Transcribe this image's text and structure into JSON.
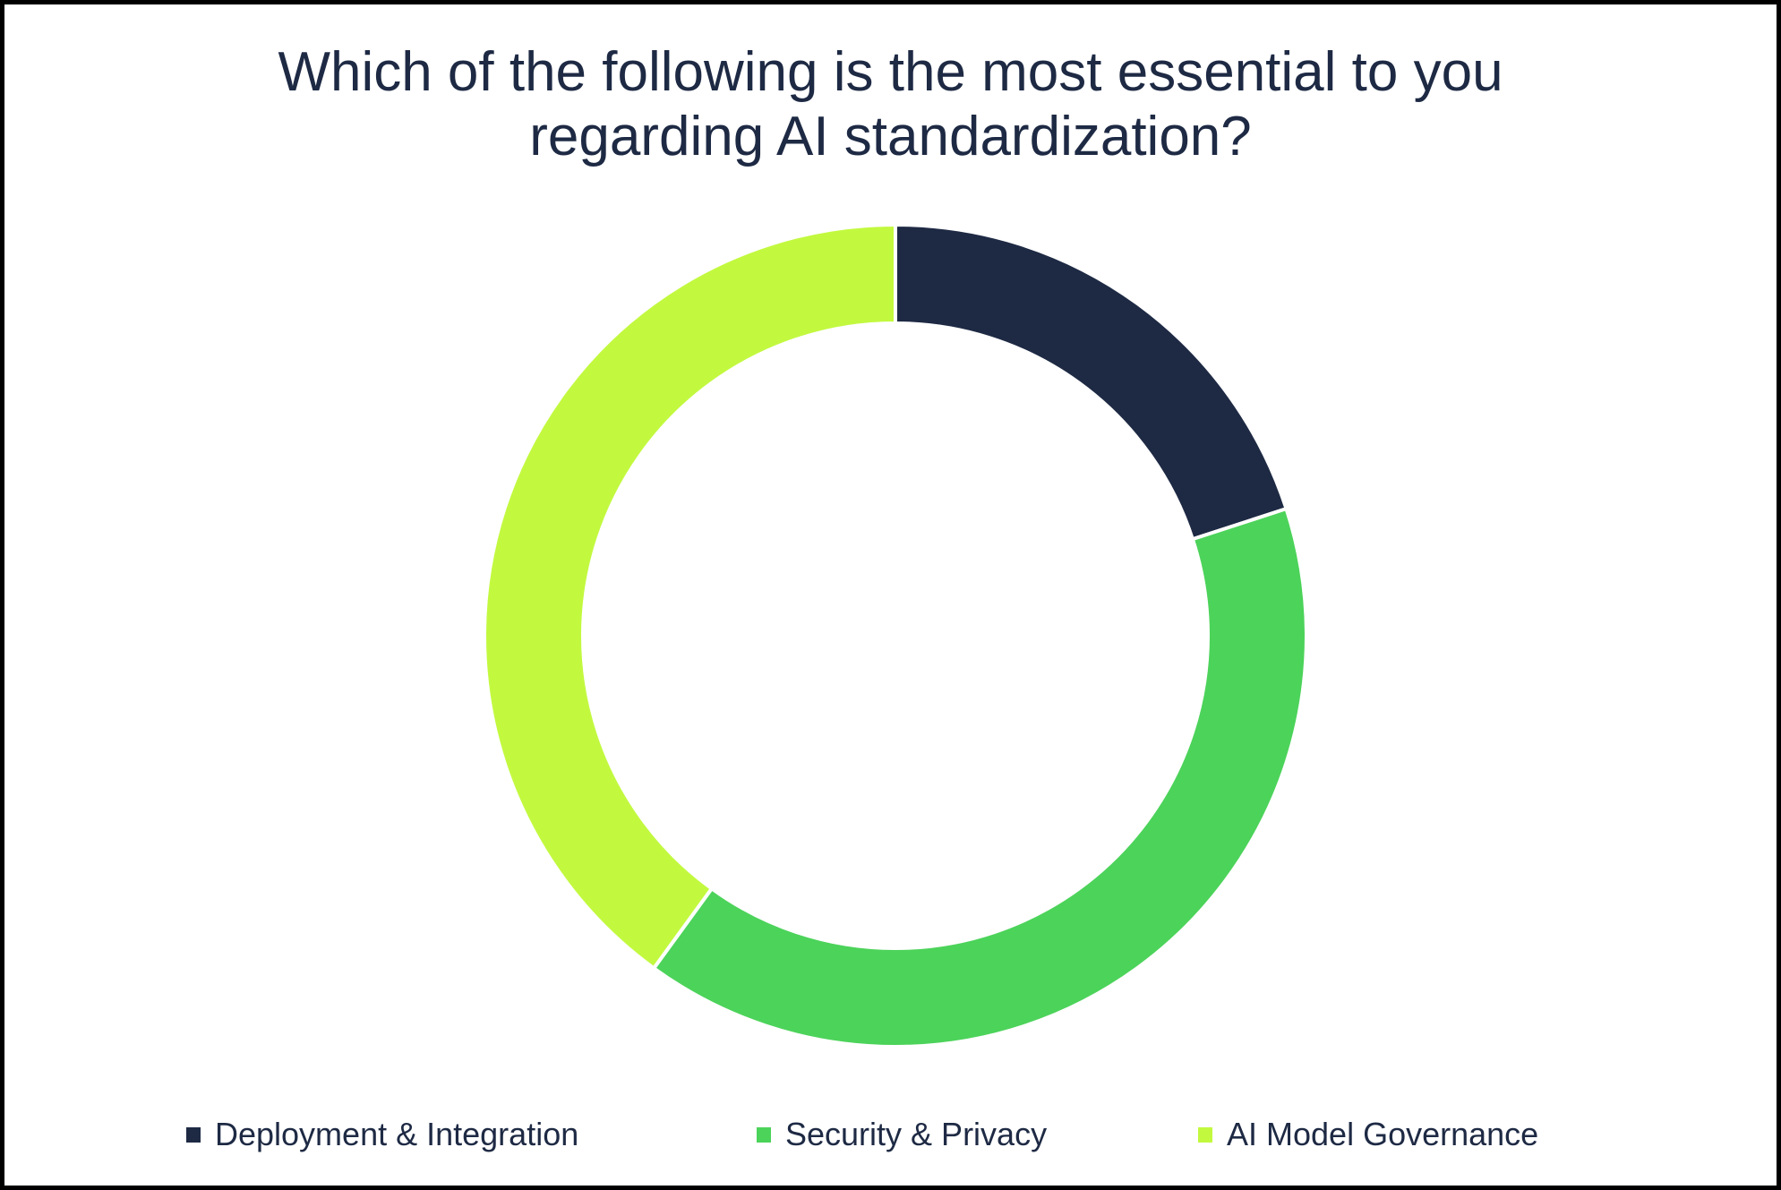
{
  "title": {
    "line1": "Which of the following is the most essential to you",
    "line2": "regarding AI standardization?",
    "color": "#1e2a44"
  },
  "chart_data": {
    "type": "pie",
    "subtype": "donut",
    "title": "Which of the following is the most essential to you regarding AI standardization?",
    "start_angle_deg": 0,
    "direction": "clockwise",
    "inner_radius_ratio": 0.76,
    "segment_gap_color": "#ffffff",
    "legend_position": "bottom",
    "data_labels_shown": false,
    "segments": [
      {
        "label": "Deployment & Integration",
        "value": 20,
        "color": "#1e2a44"
      },
      {
        "label": "Security & Privacy",
        "value": 40,
        "color": "#4cd35a"
      },
      {
        "label": "AI Model Governance",
        "value": 40,
        "color": "#c2f93f"
      }
    ]
  },
  "legend": {
    "items": [
      {
        "label": "Deployment & Integration",
        "color": "#1e2a44"
      },
      {
        "label": "Security & Privacy",
        "color": "#4cd35a"
      },
      {
        "label": "AI Model Governance",
        "color": "#c2f93f"
      }
    ]
  }
}
